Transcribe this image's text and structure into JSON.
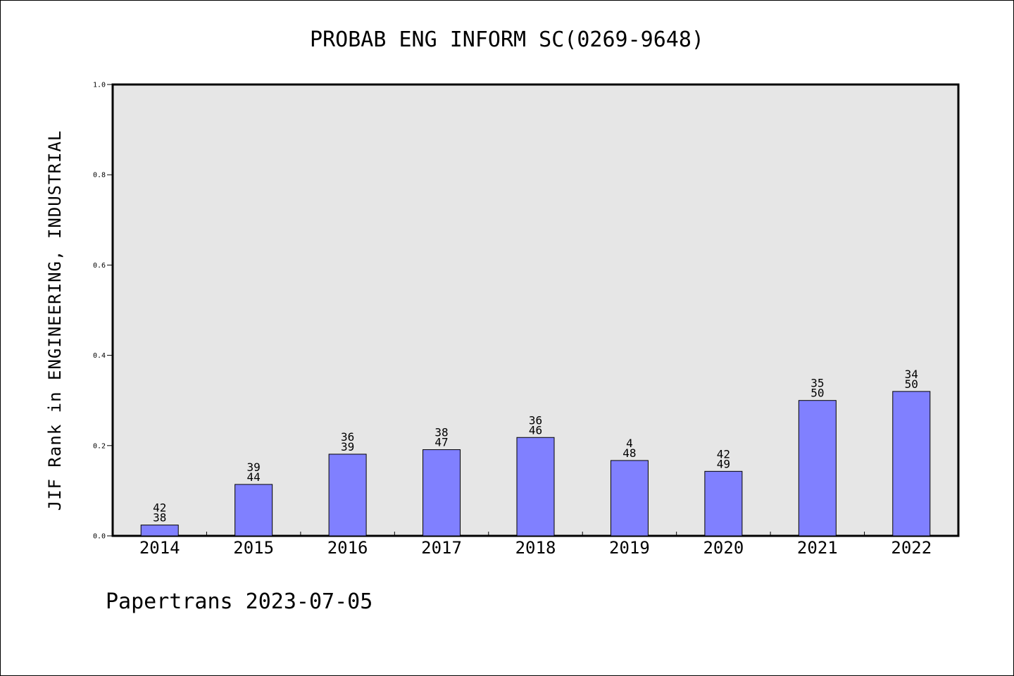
{
  "chart_data": {
    "type": "bar",
    "title": "PROBAB ENG INFORM SC(0269-9648)",
    "xlabel": "",
    "ylabel": "JIF Rank in ENGINEERING, INDUSTRIAL",
    "ylim": [
      0,
      1.0
    ],
    "yticks": [
      "0.0",
      "0.2",
      "0.4",
      "0.6",
      "0.8",
      "1.0"
    ],
    "grid": false,
    "categories": [
      "2014",
      "2015",
      "2016",
      "2017",
      "2018",
      "2019",
      "2020",
      "2021",
      "2022"
    ],
    "values": [
      0.024,
      0.114,
      0.181,
      0.191,
      0.218,
      0.167,
      0.143,
      0.3,
      0.32
    ],
    "labels_top": [
      "42",
      "39",
      "36",
      "38",
      "36",
      "4",
      "42",
      "35",
      "34"
    ],
    "labels_bottom": [
      "38",
      "44",
      "39",
      "47",
      "46",
      "48",
      "49",
      "50",
      "50"
    ],
    "bar_color": "#8080ff",
    "plot_background": "#e6e6e6"
  },
  "footer": "Papertrans 2023-07-05"
}
